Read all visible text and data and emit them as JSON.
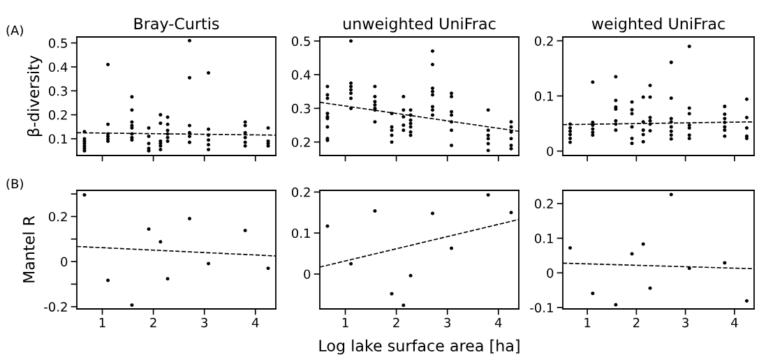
{
  "chart_data": [
    {
      "type": "scatter",
      "title": "Bray-Curtis",
      "ylabel": "β-diversity",
      "annotations": [
        "(A)"
      ],
      "xlim": [
        0.5,
        4.4
      ],
      "xticks": [
        1,
        2,
        3,
        4
      ],
      "ylim": [
        0.03,
        0.525
      ],
      "yticks": [
        0.1,
        0.2,
        0.3,
        0.4,
        0.5
      ],
      "tick_labels": "y",
      "series": [
        {
          "color": "#000000",
          "marker": "circle",
          "x": [
            0.65,
            0.65,
            0.65,
            0.65,
            0.65,
            0.65,
            0.65,
            1.11,
            1.11,
            1.11,
            1.11,
            1.11,
            1.11,
            1.58,
            1.58,
            1.58,
            1.58,
            1.58,
            1.58,
            1.58,
            1.58,
            1.91,
            1.91,
            1.91,
            1.91,
            1.91,
            2.14,
            2.14,
            2.14,
            2.14,
            2.14,
            2.14,
            2.28,
            2.28,
            2.28,
            2.28,
            2.28,
            2.28,
            2.71,
            2.71,
            2.71,
            2.71,
            2.71,
            2.71,
            3.08,
            3.08,
            3.08,
            3.08,
            3.08,
            3.08,
            3.8,
            3.8,
            3.8,
            3.8,
            3.8,
            3.8,
            4.25,
            4.25,
            4.25,
            4.25
          ],
          "values": [
            0.13,
            0.1,
            0.09,
            0.08,
            0.07,
            0.06,
            0.05,
            0.41,
            0.16,
            0.12,
            0.11,
            0.1,
            0.09,
            0.275,
            0.22,
            0.17,
            0.155,
            0.145,
            0.12,
            0.105,
            0.095,
            0.145,
            0.11,
            0.08,
            0.06,
            0.05,
            0.2,
            0.165,
            0.09,
            0.08,
            0.07,
            0.055,
            0.19,
            0.16,
            0.135,
            0.12,
            0.105,
            0.09,
            0.51,
            0.355,
            0.155,
            0.125,
            0.11,
            0.085,
            0.375,
            0.14,
            0.115,
            0.095,
            0.075,
            0.055,
            0.17,
            0.155,
            0.125,
            0.105,
            0.085,
            0.07,
            0.145,
            0.09,
            0.08,
            0.07
          ]
        },
        {
          "type": "line",
          "color": "#000000",
          "line_style": "dashed",
          "x": [
            0.5,
            4.4
          ],
          "values": [
            0.125,
            0.115
          ]
        }
      ]
    },
    {
      "type": "scatter",
      "title": "unweighted UniFrac",
      "xlim": [
        0.5,
        4.4
      ],
      "xticks": [
        1,
        2,
        3,
        4
      ],
      "ylim": [
        0.16,
        0.512
      ],
      "yticks": [
        0.2,
        0.3,
        0.4,
        0.5
      ],
      "tick_labels": "y",
      "series": [
        {
          "color": "#000000",
          "marker": "circle",
          "x": [
            0.65,
            0.65,
            0.65,
            0.65,
            0.65,
            0.65,
            0.65,
            0.65,
            0.65,
            1.11,
            1.11,
            1.11,
            1.11,
            1.11,
            1.11,
            1.11,
            1.58,
            1.58,
            1.58,
            1.58,
            1.58,
            1.58,
            1.58,
            1.91,
            1.91,
            1.91,
            1.91,
            1.91,
            2.14,
            2.14,
            2.14,
            2.14,
            2.14,
            2.28,
            2.28,
            2.28,
            2.28,
            2.28,
            2.28,
            2.28,
            2.71,
            2.71,
            2.71,
            2.71,
            2.71,
            2.71,
            2.71,
            2.71,
            3.08,
            3.08,
            3.08,
            3.08,
            3.08,
            3.08,
            3.08,
            3.8,
            3.8,
            3.8,
            3.8,
            3.8,
            3.8,
            4.25,
            4.25,
            4.25,
            4.25,
            4.25,
            4.25
          ],
          "values": [
            0.365,
            0.34,
            0.33,
            0.285,
            0.275,
            0.27,
            0.245,
            0.21,
            0.205,
            0.5,
            0.375,
            0.365,
            0.355,
            0.345,
            0.33,
            0.3,
            0.365,
            0.335,
            0.32,
            0.31,
            0.3,
            0.295,
            0.26,
            0.285,
            0.245,
            0.235,
            0.22,
            0.2,
            0.335,
            0.295,
            0.275,
            0.25,
            0.235,
            0.295,
            0.28,
            0.265,
            0.255,
            0.245,
            0.23,
            0.22,
            0.47,
            0.43,
            0.36,
            0.35,
            0.34,
            0.305,
            0.295,
            0.28,
            0.345,
            0.335,
            0.29,
            0.28,
            0.26,
            0.235,
            0.19,
            0.295,
            0.235,
            0.22,
            0.21,
            0.195,
            0.175,
            0.26,
            0.245,
            0.23,
            0.21,
            0.19,
            0.18
          ]
        },
        {
          "type": "line",
          "color": "#000000",
          "line_style": "dashed",
          "x": [
            0.5,
            4.4
          ],
          "values": [
            0.318,
            0.232
          ]
        }
      ]
    },
    {
      "type": "scatter",
      "title": "weighted UniFrac",
      "xlim": [
        0.5,
        4.4
      ],
      "xticks": [
        1,
        2,
        3,
        4
      ],
      "ylim": [
        -0.008,
        0.207
      ],
      "yticks": [
        0,
        0.1,
        0.2
      ],
      "tick_labels": "y",
      "series": [
        {
          "color": "#000000",
          "marker": "circle",
          "x": [
            0.65,
            0.65,
            0.65,
            0.65,
            0.65,
            0.65,
            1.11,
            1.11,
            1.11,
            1.11,
            1.11,
            1.11,
            1.58,
            1.58,
            1.58,
            1.58,
            1.58,
            1.58,
            1.58,
            1.91,
            1.91,
            1.91,
            1.91,
            1.91,
            1.91,
            2.14,
            2.14,
            2.14,
            2.14,
            2.14,
            2.28,
            2.28,
            2.28,
            2.28,
            2.28,
            2.28,
            2.71,
            2.71,
            2.71,
            2.71,
            2.71,
            2.71,
            2.71,
            2.71,
            3.08,
            3.08,
            3.08,
            3.08,
            3.08,
            3.08,
            3.08,
            3.8,
            3.8,
            3.8,
            3.8,
            3.8,
            3.8,
            3.8,
            4.25,
            4.25,
            4.25,
            4.25,
            4.25
          ],
          "values": [
            0.049,
            0.042,
            0.036,
            0.03,
            0.023,
            0.016,
            0.125,
            0.052,
            0.047,
            0.04,
            0.034,
            0.029,
            0.135,
            0.092,
            0.08,
            0.076,
            0.055,
            0.049,
            0.038,
            0.089,
            0.075,
            0.068,
            0.044,
            0.023,
            0.014,
            0.098,
            0.053,
            0.038,
            0.03,
            0.017,
            0.119,
            0.098,
            0.061,
            0.055,
            0.049,
            0.037,
            0.161,
            0.096,
            0.059,
            0.053,
            0.044,
            0.036,
            0.029,
            0.022,
            0.19,
            0.078,
            0.068,
            0.047,
            0.042,
            0.029,
            0.023,
            0.081,
            0.067,
            0.059,
            0.052,
            0.044,
            0.038,
            0.027,
            0.094,
            0.061,
            0.042,
            0.027,
            0.023
          ]
        },
        {
          "type": "line",
          "color": "#000000",
          "line_style": "dashed",
          "x": [
            0.5,
            4.4
          ],
          "values": [
            0.048,
            0.053
          ]
        }
      ]
    },
    {
      "type": "scatter",
      "ylabel": "Mantel R",
      "annotations": [
        "(B)"
      ],
      "xlim": [
        0.5,
        4.4
      ],
      "xticks": [
        1,
        2,
        3,
        4
      ],
      "ylim": [
        -0.21,
        0.316
      ],
      "yticks": [
        {
          "value": -0.2,
          "label": "-0.2"
        },
        {
          "value": -0.1,
          "label": null
        },
        0,
        {
          "value": 0.1,
          "label": null
        },
        0.2,
        {
          "value": 0.3,
          "label": null
        }
      ],
      "series": [
        {
          "color": "#000000",
          "marker": "circle",
          "x": [
            0.65,
            1.11,
            1.58,
            1.91,
            2.14,
            2.28,
            2.71,
            3.08,
            3.8,
            4.25
          ],
          "values": [
            0.296,
            -0.083,
            -0.193,
            0.144,
            0.088,
            -0.076,
            0.191,
            -0.009,
            0.138,
            -0.03
          ]
        },
        {
          "type": "line",
          "color": "#000000",
          "line_style": "dashed",
          "x": [
            0.5,
            4.4
          ],
          "values": [
            0.067,
            0.025
          ]
        }
      ]
    },
    {
      "type": "scatter",
      "xlabel": "Log lake surface area [ha]",
      "xlim": [
        0.5,
        4.4
      ],
      "xticks": [
        1,
        2,
        3,
        4
      ],
      "ylim": [
        -0.085,
        0.204
      ],
      "yticks": [
        0,
        0.1,
        0.2
      ],
      "series": [
        {
          "color": "#000000",
          "marker": "circle",
          "x": [
            0.65,
            1.11,
            1.58,
            1.91,
            2.14,
            2.28,
            2.71,
            3.08,
            3.8,
            4.25
          ],
          "values": [
            0.117,
            0.025,
            0.154,
            -0.048,
            -0.076,
            -0.004,
            0.148,
            0.063,
            0.193,
            0.15
          ]
        },
        {
          "type": "line",
          "color": "#000000",
          "line_style": "dashed",
          "x": [
            0.5,
            4.4
          ],
          "values": [
            0.017,
            0.133
          ]
        }
      ]
    },
    {
      "type": "scatter",
      "xlim": [
        0.5,
        4.4
      ],
      "xticks": [
        1,
        2,
        3,
        4
      ],
      "ylim": [
        -0.104,
        0.238
      ],
      "yticks": [
        {
          "value": -0.1,
          "label": "-0.1"
        },
        0,
        0.1,
        0.2
      ],
      "series": [
        {
          "color": "#000000",
          "marker": "circle",
          "x": [
            0.65,
            1.11,
            1.58,
            1.91,
            2.14,
            2.28,
            2.71,
            3.08,
            3.8,
            4.25
          ],
          "values": [
            0.072,
            -0.059,
            -0.092,
            0.055,
            0.083,
            -0.044,
            0.226,
            0.013,
            0.029,
            -0.081
          ]
        },
        {
          "type": "line",
          "color": "#000000",
          "line_style": "dashed",
          "x": [
            0.5,
            4.4
          ],
          "values": [
            0.028,
            0.012
          ]
        }
      ]
    }
  ]
}
